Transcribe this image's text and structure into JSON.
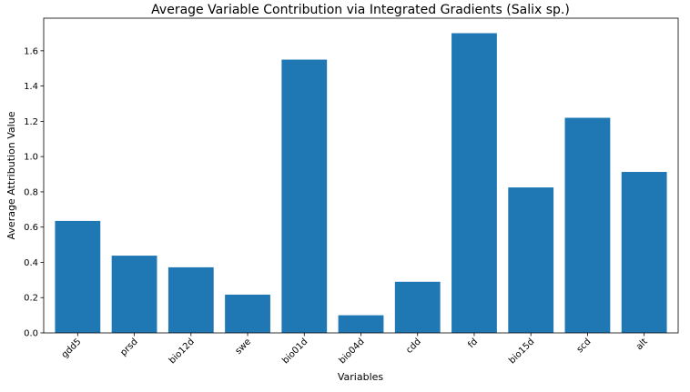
{
  "chart_data": {
    "type": "bar",
    "title": "Average Variable Contribution via Integrated Gradients (Salix sp.)",
    "xlabel": "Variables",
    "ylabel": "Average Attribution Value",
    "categories": [
      "gdd5",
      "prsd",
      "bio12d",
      "swe",
      "bio01d",
      "bio04d",
      "cdd",
      "fd",
      "bio15d",
      "scd",
      "alt"
    ],
    "values": [
      0.635,
      0.438,
      0.372,
      0.217,
      1.55,
      0.1,
      0.29,
      1.7,
      0.825,
      1.22,
      0.913
    ],
    "ylim": [
      0,
      1.785
    ],
    "yticks": [
      0.0,
      0.2,
      0.4,
      0.6,
      0.8,
      1.0,
      1.2,
      1.4,
      1.6
    ],
    "ytick_labels": [
      "0.0",
      "0.2",
      "0.4",
      "0.6",
      "0.8",
      "1.0",
      "1.2",
      "1.4",
      "1.6"
    ],
    "grid": false,
    "bar_color": "#1f77b4",
    "tick_label_rotation": 45
  }
}
